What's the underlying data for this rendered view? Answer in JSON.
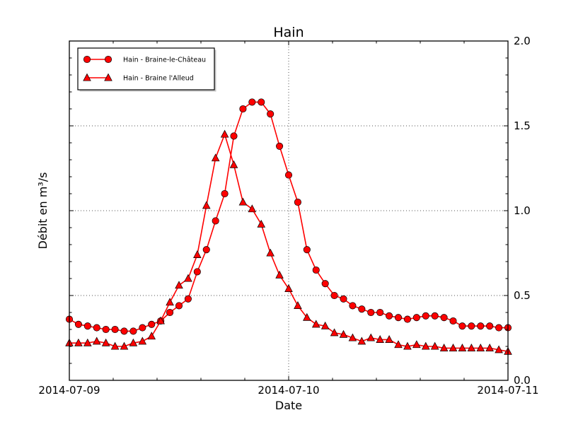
{
  "figure": {
    "background": "#ffffff"
  },
  "chart_data": {
    "type": "line",
    "title": "Hain",
    "xlabel": "Date",
    "ylabel": "Débit en m³/s",
    "x_start": "2014-07-09 00:00",
    "x_interval_hours": 1,
    "x_total_hours": 48,
    "xlim": [
      "2014-07-09",
      "2014-07-11"
    ],
    "ylim": [
      0.0,
      2.0
    ],
    "yticks": [
      0.0,
      0.5,
      1.0,
      1.5,
      2.0
    ],
    "ytick_labels": [
      "0.0",
      "0.5",
      "1.0",
      "1.5",
      "2.0"
    ],
    "ytick_label_side": "right",
    "y_minor_step": 0.1,
    "xtick_labels": [
      "2014-07-09",
      "2014-07-10",
      "2014-07-11"
    ],
    "x_minor_intervals_per_day": 5,
    "grid": {
      "style": "dotted",
      "horizontal_values": [
        0.5,
        1.0,
        1.5
      ],
      "vertical_day_index": [
        1
      ]
    },
    "legend": {
      "position": "upper-left",
      "numpoints": 2
    },
    "colors": {
      "series_line": "#ff0000",
      "marker_face": "#ff0000",
      "marker_edge": "#000000",
      "grid": "#555555",
      "axes": "#000000",
      "legend_shadow": "#999999"
    },
    "series": [
      {
        "name": "Hain - Braine-le-Château",
        "marker": "circle",
        "color": "#ff0000",
        "values": [
          0.36,
          0.33,
          0.32,
          0.31,
          0.3,
          0.3,
          0.29,
          0.29,
          0.31,
          0.33,
          0.35,
          0.4,
          0.44,
          0.48,
          0.64,
          0.77,
          0.94,
          1.1,
          1.44,
          1.6,
          1.64,
          1.64,
          1.57,
          1.38,
          1.21,
          1.05,
          0.77,
          0.65,
          0.57,
          0.5,
          0.48,
          0.44,
          0.42,
          0.4,
          0.4,
          0.38,
          0.37,
          0.36,
          0.37,
          0.38,
          0.38,
          0.37,
          0.35,
          0.32,
          0.32,
          0.32,
          0.32,
          0.31,
          0.31
        ]
      },
      {
        "name": "Hain - Braine l'Alleud",
        "marker": "triangle",
        "color": "#ff0000",
        "values": [
          0.22,
          0.22,
          0.22,
          0.23,
          0.22,
          0.2,
          0.2,
          0.22,
          0.23,
          0.26,
          0.35,
          0.46,
          0.56,
          0.6,
          0.74,
          1.03,
          1.31,
          1.45,
          1.27,
          1.05,
          1.01,
          0.92,
          0.75,
          0.62,
          0.54,
          0.44,
          0.37,
          0.33,
          0.32,
          0.28,
          0.27,
          0.25,
          0.23,
          0.25,
          0.24,
          0.24,
          0.21,
          0.2,
          0.21,
          0.2,
          0.2,
          0.19,
          0.19,
          0.19,
          0.19,
          0.19,
          0.19,
          0.18,
          0.17
        ]
      }
    ]
  }
}
